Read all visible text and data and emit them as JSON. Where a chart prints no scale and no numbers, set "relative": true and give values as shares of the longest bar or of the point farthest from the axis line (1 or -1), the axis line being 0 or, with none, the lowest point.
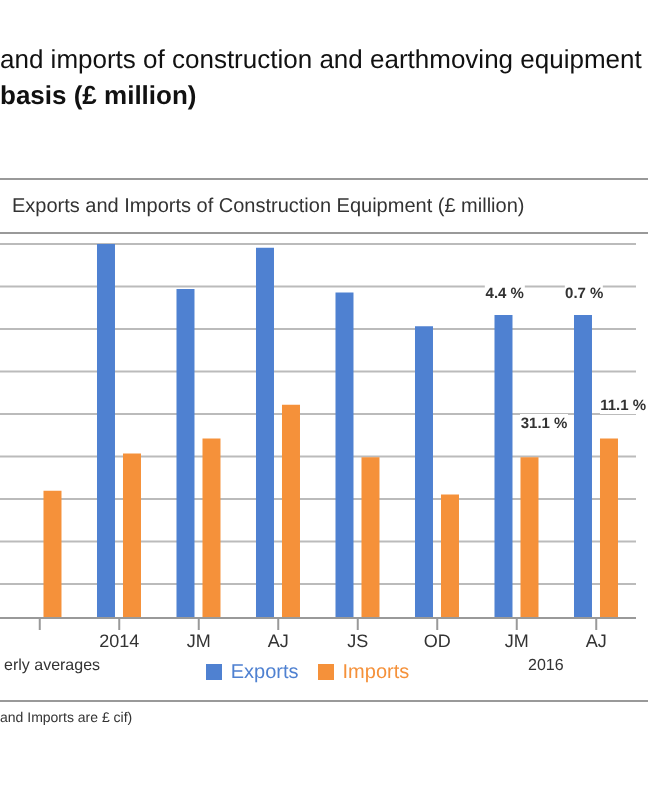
{
  "chart_data": {
    "type": "bar",
    "title": "and imports of construction and earthmoving equipment",
    "subtitle": "basis (£ million)",
    "annotations": [
      "Exports and Imports of Construction Equipment (£ million)",
      "erly averages",
      "2016",
      "and Imports are £ cif)",
      "4.4 %",
      "0.7 %",
      "31.1 %",
      "11.1 %"
    ],
    "categories": [
      null,
      "2014",
      "JM",
      "AJ",
      "JS",
      "OD",
      "JM",
      "AJ"
    ],
    "series": [
      {
        "name": "Exports",
        "color": "#4f81d1",
        "values": [
          null,
          1,
          0.88,
          0.99,
          0.87,
          0.78,
          0.81,
          0.81
        ]
      },
      {
        "name": "Imports",
        "color": "#f5913a",
        "values": [
          0.34,
          0.44,
          0.48,
          0.57,
          0.43,
          0.33,
          0.43,
          0.48
        ]
      }
    ],
    "relative": true,
    "grid": "y",
    "legend": "bottom"
  }
}
